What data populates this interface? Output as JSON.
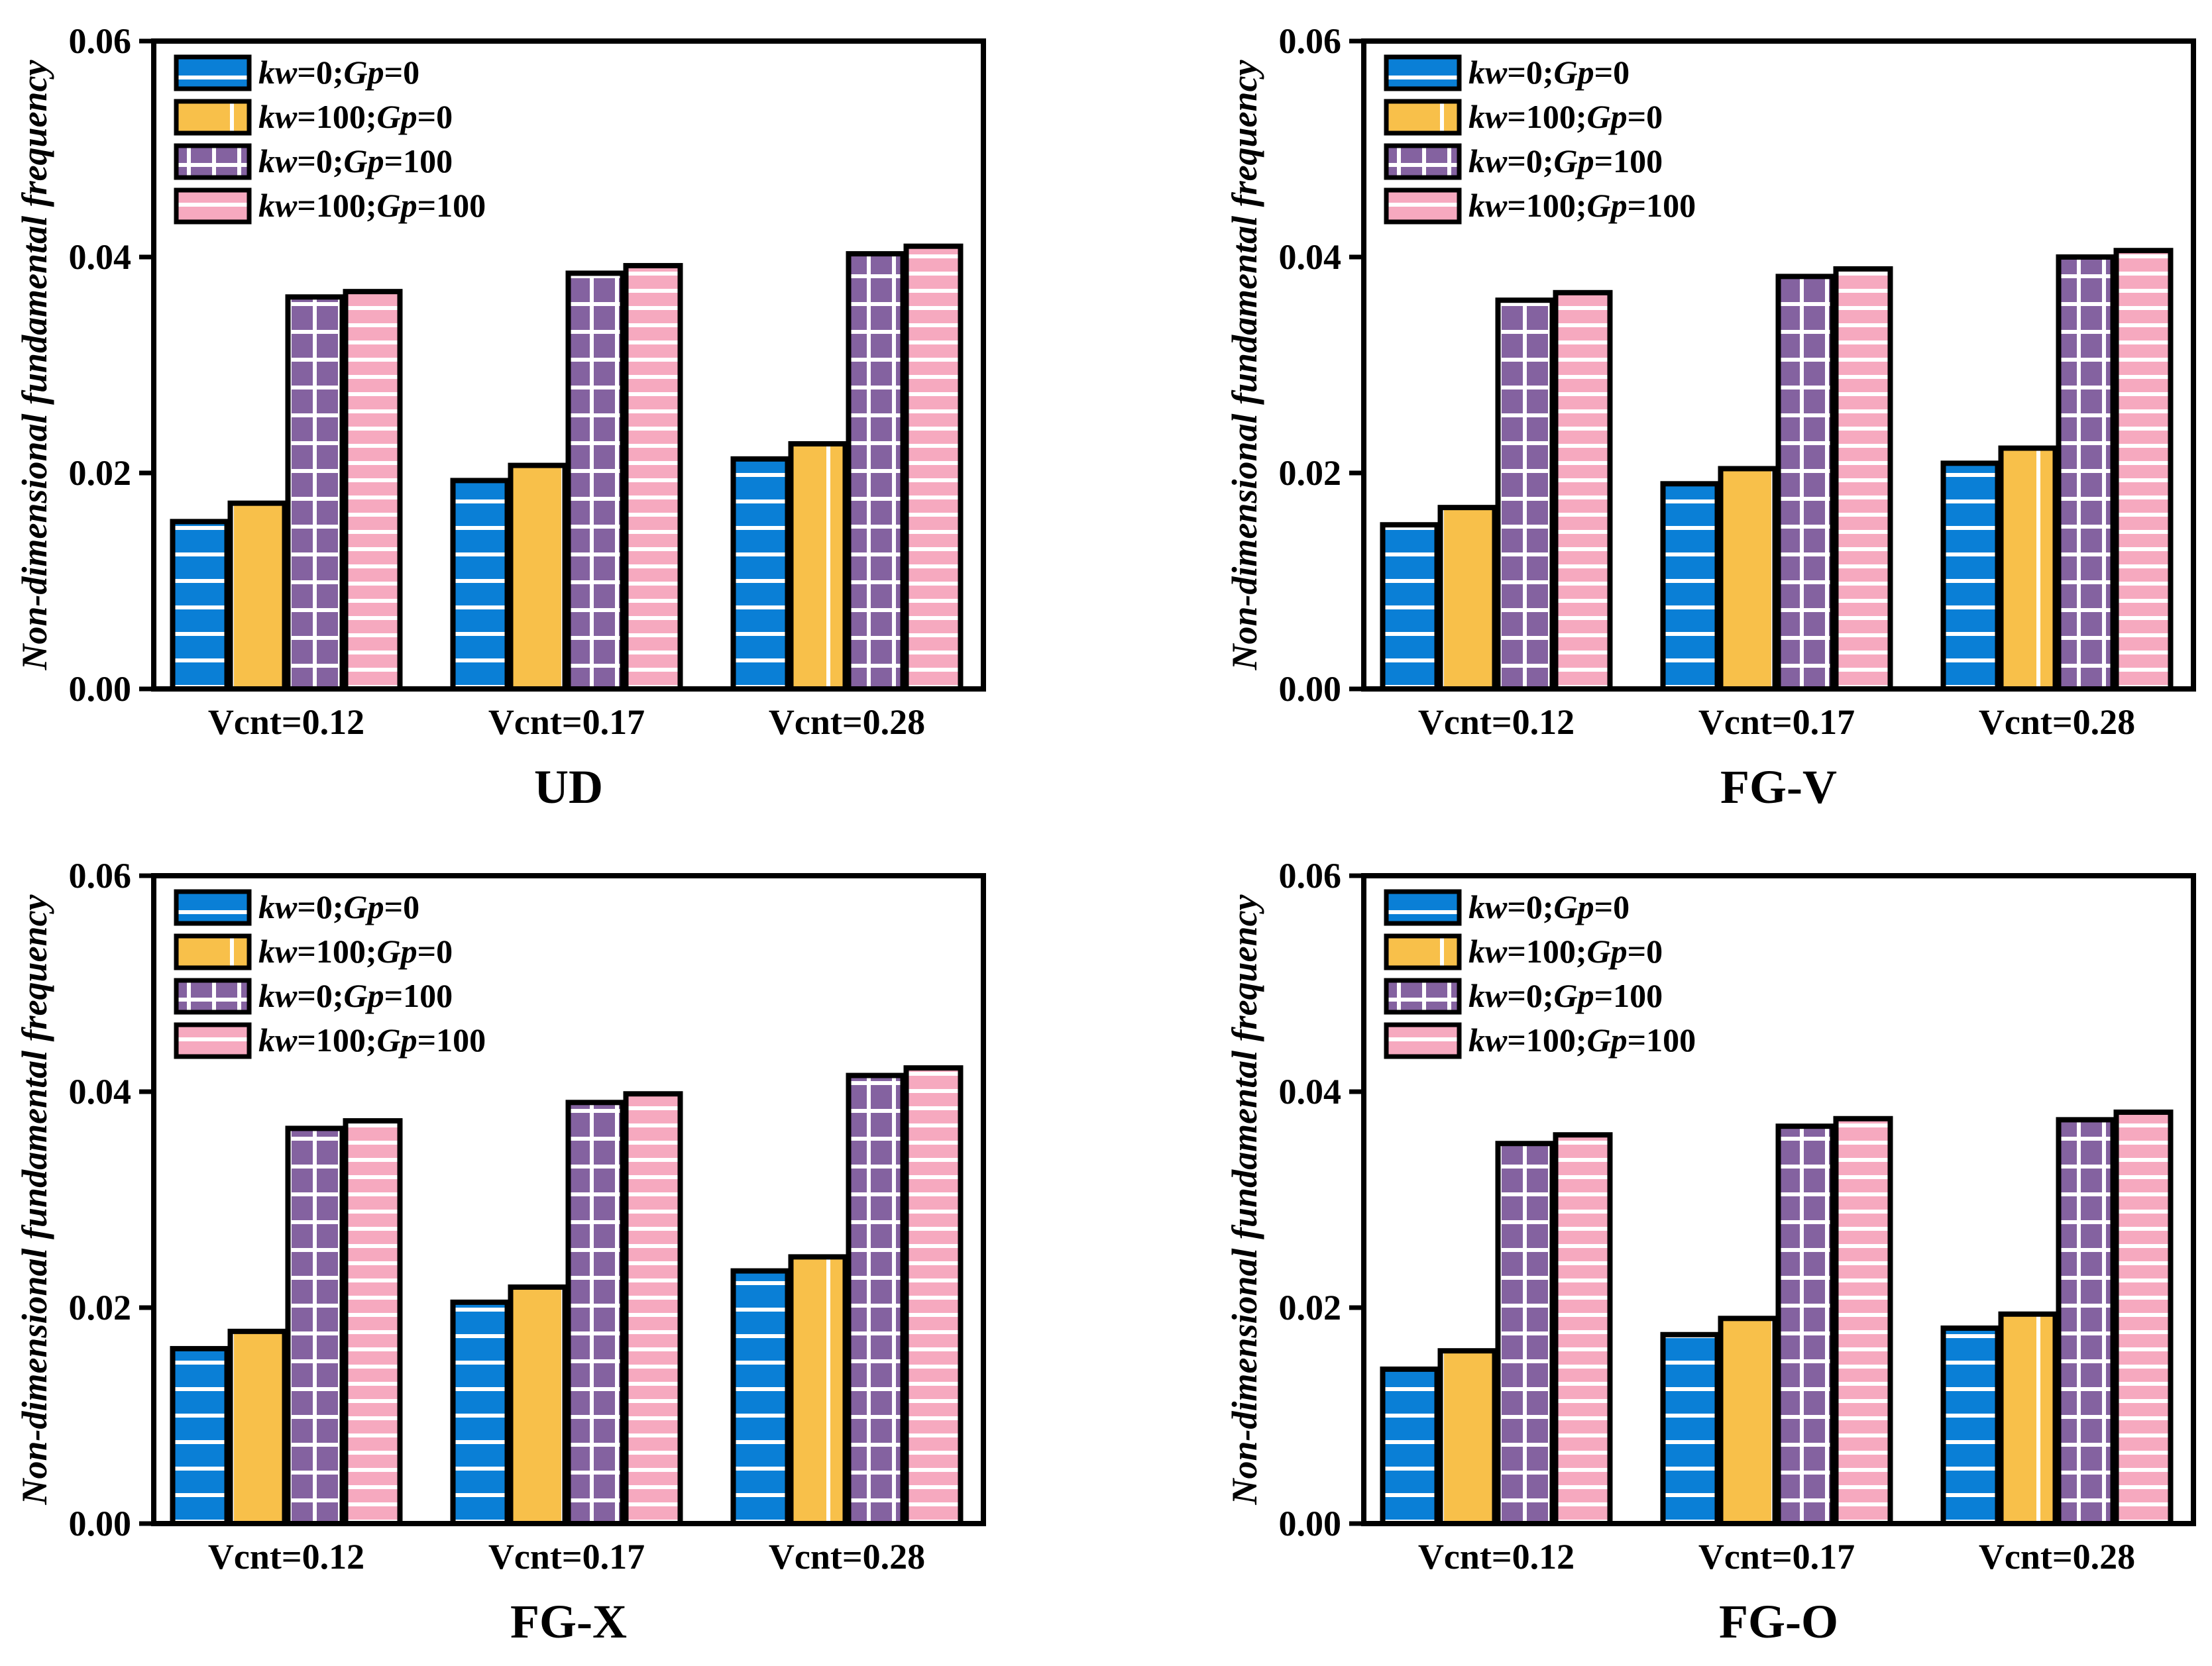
{
  "colors": {
    "s0": "#0a7fd6",
    "s1": "#f8c04a",
    "s2": "#8462a0",
    "s3": "#f6a9bf",
    "axis": "#000000",
    "stripe": "#ffffff"
  },
  "legend_pattern_hints": [
    "horizontal-lines",
    "vertical-line",
    "grid",
    "horizontal-lines"
  ],
  "chart_data": [
    {
      "type": "bar",
      "title": "UD",
      "xlabel": "",
      "ylabel": "Non-dimensional fundamental frequency",
      "ylim": [
        0,
        0.06
      ],
      "yticks": [
        "0.00",
        "0.02",
        "0.04",
        "0.06"
      ],
      "categories": [
        "Vcnt=0.12",
        "Vcnt=0.17",
        "Vcnt=0.28"
      ],
      "legend_position": "top-left",
      "series": [
        {
          "name": "kw=0;Gp=0",
          "kw": "kw",
          "kw_val": "=0;",
          "gp": "Gp",
          "gp_val": "=0",
          "values": [
            0.0155,
            0.0193,
            0.0213
          ]
        },
        {
          "name": "kw=100;Gp=0",
          "kw": "kw",
          "kw_val": "=100;",
          "gp": "Gp",
          "gp_val": "=0",
          "values": [
            0.0172,
            0.0207,
            0.0227
          ]
        },
        {
          "name": "kw=0;Gp=100",
          "kw": "kw",
          "kw_val": "=0;",
          "gp": "Gp",
          "gp_val": "=100",
          "values": [
            0.0363,
            0.0385,
            0.0403
          ]
        },
        {
          "name": "kw=100;Gp=100",
          "kw": "kw",
          "kw_val": "=100;",
          "gp": "Gp",
          "gp_val": "=100",
          "values": [
            0.0368,
            0.0392,
            0.041
          ]
        }
      ]
    },
    {
      "type": "bar",
      "title": "FG-V",
      "xlabel": "",
      "ylabel": "Non-dimensional fundamental frequency",
      "ylim": [
        0,
        0.06
      ],
      "yticks": [
        "0.00",
        "0.02",
        "0.04",
        "0.06"
      ],
      "categories": [
        "Vcnt=0.12",
        "Vcnt=0.17",
        "Vcnt=0.28"
      ],
      "legend_position": "top-left",
      "series": [
        {
          "name": "kw=0;Gp=0",
          "kw": "kw",
          "kw_val": "=0;",
          "gp": "Gp",
          "gp_val": "=0",
          "values": [
            0.0152,
            0.019,
            0.0209
          ]
        },
        {
          "name": "kw=100;Gp=0",
          "kw": "kw",
          "kw_val": "=100;",
          "gp": "Gp",
          "gp_val": "=0",
          "values": [
            0.0168,
            0.0204,
            0.0223
          ]
        },
        {
          "name": "kw=0;Gp=100",
          "kw": "kw",
          "kw_val": "=0;",
          "gp": "Gp",
          "gp_val": "=100",
          "values": [
            0.036,
            0.0382,
            0.04
          ]
        },
        {
          "name": "kw=100;Gp=100",
          "kw": "kw",
          "kw_val": "=100;",
          "gp": "Gp",
          "gp_val": "=100",
          "values": [
            0.0367,
            0.0389,
            0.0406
          ]
        }
      ]
    },
    {
      "type": "bar",
      "title": "FG-X",
      "xlabel": "",
      "ylabel": "Non-dimensional fundamental frequency",
      "ylim": [
        0,
        0.06
      ],
      "yticks": [
        "0.00",
        "0.02",
        "0.04",
        "0.06"
      ],
      "categories": [
        "Vcnt=0.12",
        "Vcnt=0.17",
        "Vcnt=0.28"
      ],
      "legend_position": "top-left",
      "series": [
        {
          "name": "kw=0;Gp=0",
          "kw": "kw",
          "kw_val": "=0;",
          "gp": "Gp",
          "gp_val": "=0",
          "values": [
            0.0162,
            0.0205,
            0.0234
          ]
        },
        {
          "name": "kw=100;Gp=0",
          "kw": "kw",
          "kw_val": "=100;",
          "gp": "Gp",
          "gp_val": "=0",
          "values": [
            0.0178,
            0.0219,
            0.0247
          ]
        },
        {
          "name": "kw=0;Gp=100",
          "kw": "kw",
          "kw_val": "=0;",
          "gp": "Gp",
          "gp_val": "=100",
          "values": [
            0.0366,
            0.039,
            0.0415
          ]
        },
        {
          "name": "kw=100;Gp=100",
          "kw": "kw",
          "kw_val": "=100;",
          "gp": "Gp",
          "gp_val": "=100",
          "values": [
            0.0373,
            0.0398,
            0.0422
          ]
        }
      ]
    },
    {
      "type": "bar",
      "title": "FG-O",
      "xlabel": "",
      "ylabel": "Non-dimensional fundamental frequency",
      "ylim": [
        0,
        0.06
      ],
      "yticks": [
        "0.00",
        "0.02",
        "0.04",
        "0.06"
      ],
      "categories": [
        "Vcnt=0.12",
        "Vcnt=0.17",
        "Vcnt=0.28"
      ],
      "legend_position": "top-left",
      "series": [
        {
          "name": "kw=0;Gp=0",
          "kw": "kw",
          "kw_val": "=0;",
          "gp": "Gp",
          "gp_val": "=0",
          "values": [
            0.0143,
            0.0175,
            0.0181
          ]
        },
        {
          "name": "kw=100;Gp=0",
          "kw": "kw",
          "kw_val": "=100;",
          "gp": "Gp",
          "gp_val": "=0",
          "values": [
            0.016,
            0.019,
            0.0194
          ]
        },
        {
          "name": "kw=0;Gp=100",
          "kw": "kw",
          "kw_val": "=0;",
          "gp": "Gp",
          "gp_val": "=100",
          "values": [
            0.0352,
            0.0368,
            0.0374
          ]
        },
        {
          "name": "kw=100;Gp=100",
          "kw": "kw",
          "kw_val": "=100;",
          "gp": "Gp",
          "gp_val": "=100",
          "values": [
            0.036,
            0.0375,
            0.0381
          ]
        }
      ]
    }
  ]
}
